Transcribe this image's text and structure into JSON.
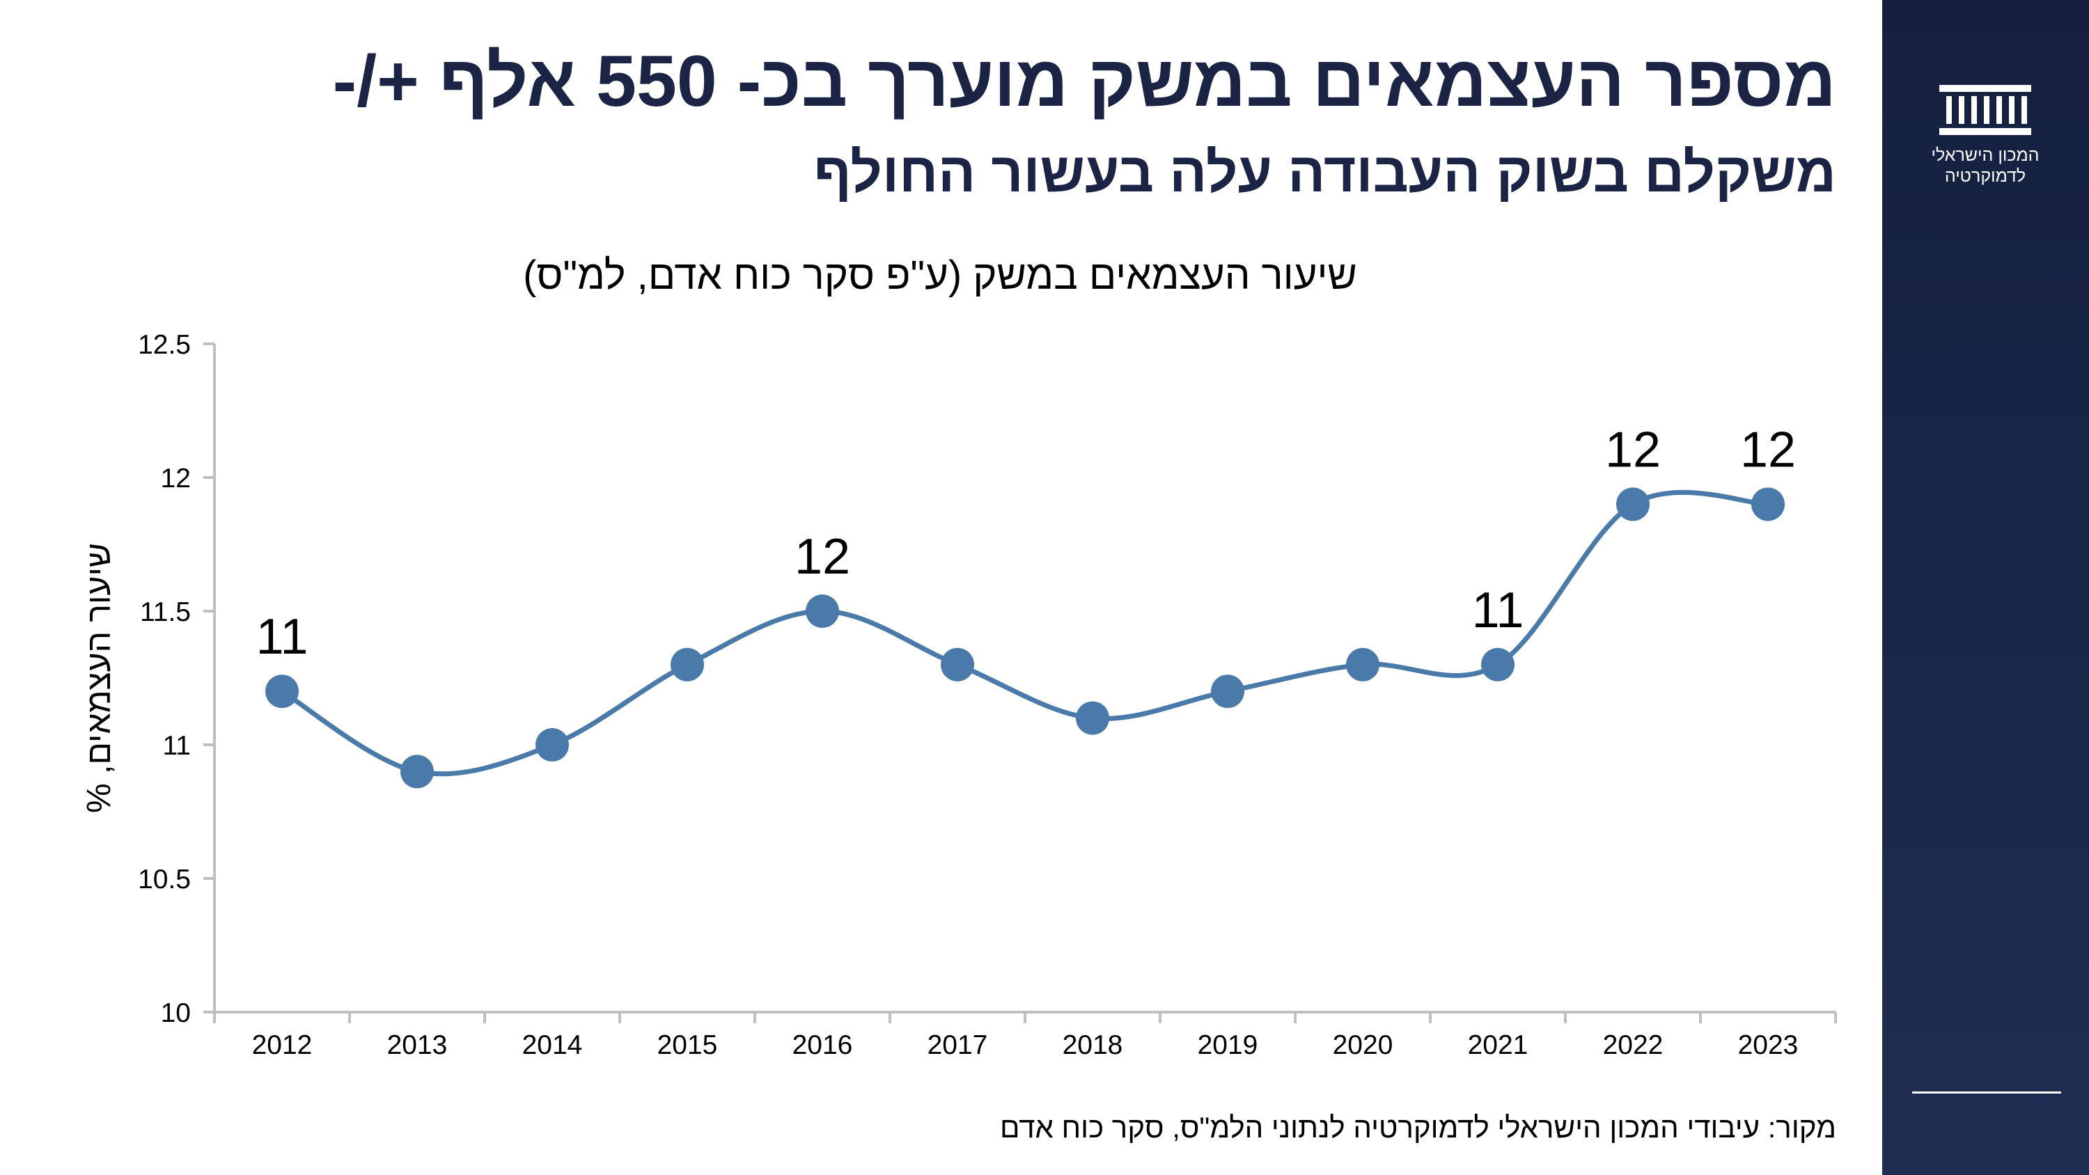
{
  "header": {
    "title_line1": "מספר העצמאים במשק מוערך בכ- 550 אלף +/-",
    "title_line2": "משקלם בשוק העבודה עלה בעשור החולף"
  },
  "branding": {
    "logo_icon": "institution-columns-icon",
    "logo_text_line1": "המכון הישראלי",
    "logo_text_line2": "לדמוקרטיה"
  },
  "source_note": "מקור: עיבודי המכון הישראלי לדמוקרטיה לנתוני הלמ\"ס, סקר כוח אדם",
  "colors": {
    "series": "#4a7aaa",
    "sidebar": "#1b2747",
    "heading": "#1b2444",
    "axis": "#bfbfbf"
  },
  "chart_data": {
    "type": "line",
    "title": "שיעור העצמאים במשק (ע\"פ סקר כוח אדם, למ\"ס)",
    "xlabel": "",
    "ylabel": "שיעור העצמאים, %",
    "categories": [
      "2012",
      "2013",
      "2014",
      "2015",
      "2016",
      "2017",
      "2018",
      "2019",
      "2020",
      "2021",
      "2022",
      "2023"
    ],
    "series": [
      {
        "values": [
          11.2,
          10.9,
          11.0,
          11.3,
          11.5,
          11.3,
          11.1,
          11.2,
          11.3,
          11.3,
          11.9,
          11.9
        ]
      }
    ],
    "data_labels": [
      {
        "index": 0,
        "text": "11"
      },
      {
        "index": 4,
        "text": "12"
      },
      {
        "index": 9,
        "text": "11"
      },
      {
        "index": 10,
        "text": "12"
      },
      {
        "index": 11,
        "text": "12"
      }
    ],
    "ylim": [
      10,
      12.5
    ],
    "yticks": [
      "10",
      "10.5",
      "11",
      "11.5",
      "12",
      "12.5"
    ],
    "smooth": true,
    "grid": false,
    "legend": "none"
  }
}
